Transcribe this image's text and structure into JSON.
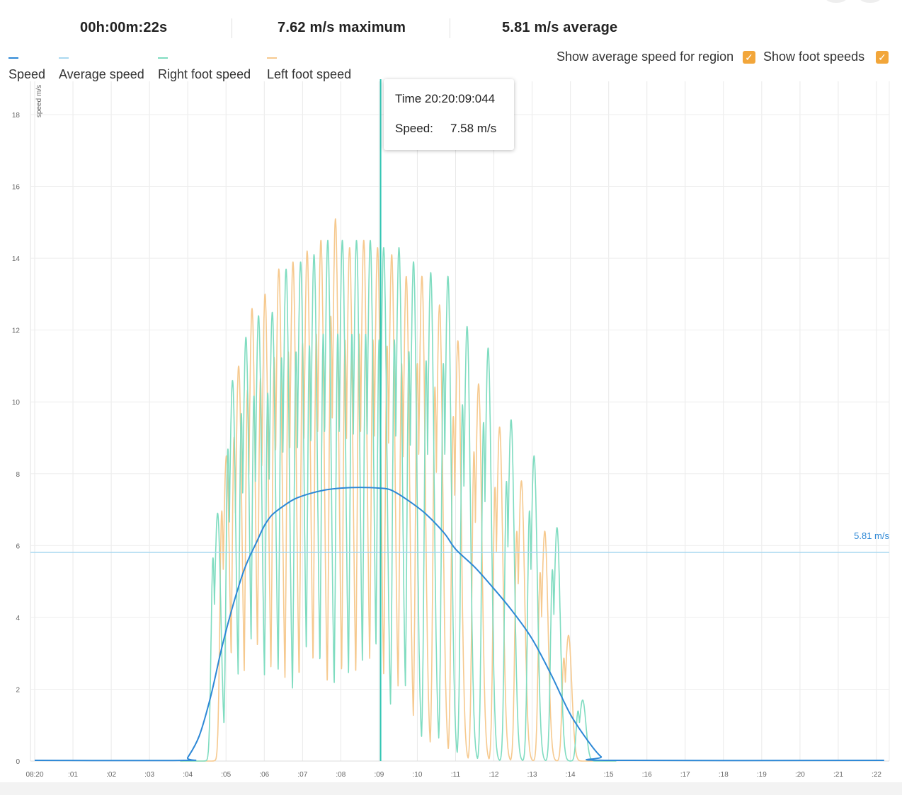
{
  "stats": {
    "duration": "00h:00m:22s",
    "maximum": "7.62 m/s maximum",
    "average": "5.81 m/s average"
  },
  "legend": [
    {
      "label": "Speed",
      "color": "#2d88d6"
    },
    {
      "label": "Average speed",
      "color": "#a9d8f0"
    },
    {
      "label": "Right foot speed",
      "color": "#7fdcc0"
    },
    {
      "label": "Left foot speed",
      "color": "#f6c98e"
    }
  ],
  "toggles": {
    "average_region": {
      "label": "Show average speed for region",
      "checked": true
    },
    "foot_speeds": {
      "label": "Show foot speeds",
      "checked": true
    }
  },
  "tooltip": {
    "time": "Time 20:20:09:044",
    "speed_label": "Speed:",
    "speed_value": "7.58 m/s"
  },
  "colors": {
    "speed": "#2d88d6",
    "average": "#a9d8f0",
    "average_label": "#2d88d6",
    "right_foot": "#7fdcc0",
    "left_foot": "#f6c98e",
    "cursor": "#2fc4b2",
    "checkbox": "#f2a63a"
  },
  "chart_data": {
    "type": "line",
    "ylabel": "speed m/s",
    "ylim": [
      0,
      18
    ],
    "yticks": [
      "0",
      "2",
      "4",
      "6",
      "8",
      "10",
      "12",
      "14",
      "16",
      "18"
    ],
    "xlim": [
      0,
      22
    ],
    "xticks": [
      "08:20",
      ":01",
      ":02",
      ":03",
      ":04",
      ":05",
      ":06",
      ":07",
      ":08",
      ":09",
      ":10",
      ":11",
      ":12",
      ":13",
      ":14",
      ":15",
      ":16",
      ":17",
      ":18",
      ":19",
      ":20",
      ":21",
      ":22"
    ],
    "grid": true,
    "average": {
      "value": 5.81,
      "label": "5.81 m/s"
    },
    "cursor_x": 9.04,
    "series": [
      {
        "name": "Speed",
        "x": [
          0,
          3.9,
          4.0,
          4.3,
          4.6,
          4.9,
          5.2,
          5.5,
          5.8,
          6.0,
          6.2,
          6.5,
          6.8,
          7.2,
          7.6,
          8.0,
          8.5,
          9.0,
          9.3,
          9.7,
          10.2,
          10.7,
          11.0,
          11.5,
          12.0,
          12.5,
          13.0,
          13.5,
          14.0,
          14.5,
          14.8,
          15.0,
          22.2
        ],
        "values": [
          0.02,
          0.02,
          0.1,
          0.7,
          1.8,
          3.2,
          4.4,
          5.4,
          6.1,
          6.55,
          6.85,
          7.1,
          7.3,
          7.45,
          7.55,
          7.6,
          7.62,
          7.6,
          7.55,
          7.3,
          6.9,
          6.35,
          5.9,
          5.4,
          4.8,
          4.15,
          3.4,
          2.4,
          1.3,
          0.5,
          0.12,
          0.02,
          0.02
        ]
      },
      {
        "name": "Right foot speed",
        "peaks_x": [
          4.78,
          5.17,
          5.52,
          5.85,
          6.21,
          6.57,
          6.95,
          7.3,
          7.66,
          8.04,
          8.41,
          8.77,
          9.12,
          9.52,
          9.9,
          10.35,
          10.8,
          11.3,
          11.85,
          12.45,
          13.05,
          13.65,
          14.32
        ],
        "peaks": [
          6.9,
          10.6,
          11.8,
          12.4,
          12.5,
          13.7,
          13.9,
          14.1,
          14.5,
          14.5,
          14.5,
          14.5,
          14.3,
          14.3,
          13.9,
          13.6,
          13.5,
          12.1,
          11.5,
          9.5,
          8.5,
          6.5,
          1.7
        ]
      },
      {
        "name": "Left foot speed",
        "peaks_x": [
          5.01,
          5.33,
          5.68,
          6.02,
          6.38,
          6.75,
          7.12,
          7.48,
          7.86,
          8.23,
          8.6,
          8.96,
          9.33,
          9.71,
          10.12,
          10.58,
          11.06,
          11.6,
          12.15,
          12.72,
          13.33,
          13.95
        ],
        "peaks": [
          8.5,
          11.0,
          12.6,
          13.0,
          13.7,
          13.9,
          14.2,
          14.5,
          15.1,
          14.3,
          14.5,
          14.3,
          14.1,
          13.5,
          13.5,
          12.7,
          11.7,
          10.5,
          9.3,
          7.8,
          6.4,
          3.5
        ]
      }
    ]
  }
}
